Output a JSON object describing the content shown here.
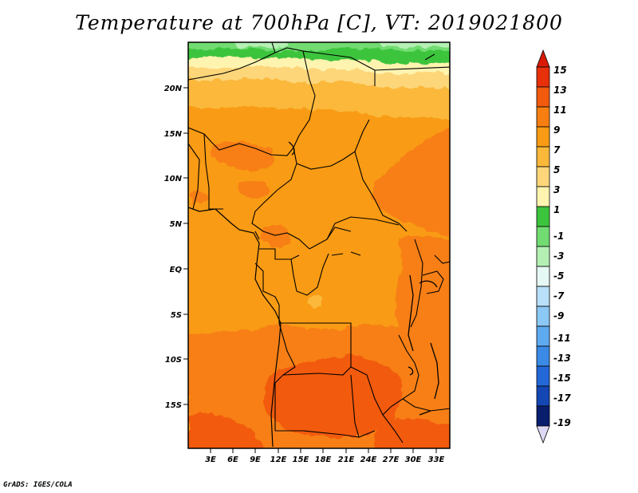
{
  "title": "Temperature at 700hPa [C], VT: 2019021800",
  "credit": "GrADS: IGES/COLA",
  "map": {
    "lat_labels": [
      "20N",
      "15N",
      "10N",
      "5N",
      "EQ",
      "5S",
      "10S",
      "15S"
    ],
    "lon_labels": [
      "3E",
      "6E",
      "9E",
      "12E",
      "15E",
      "18E",
      "21E",
      "24E",
      "27E",
      "30E",
      "33E"
    ]
  },
  "colorbar": {
    "labels": [
      "15",
      "13",
      "11",
      "9",
      "7",
      "5",
      "3",
      "1",
      "-1",
      "-3",
      "-5",
      "-7",
      "-9",
      "-11",
      "-13",
      "-15",
      "-17",
      "-19"
    ],
    "colors": {
      "top_arrow": "#d81a06",
      "c15": "#e8300a",
      "c13": "#f25a0e",
      "c11": "#f77f12",
      "c9": "#f99b14",
      "c7": "#fbb83a",
      "c5": "#fdd67a",
      "c3": "#fef4b0",
      "c1": "#3cc43c",
      "cm1": "#72dc72",
      "cm3": "#b4f0b4",
      "cm5": "#e6f8f4",
      "cm7": "#b8e0f8",
      "cm9": "#8cc8f4",
      "cm11": "#5eaaf0",
      "cm13": "#3a8ae6",
      "cm15": "#2468d8",
      "cm17": "#1446b4",
      "cm19": "#0a1e6e",
      "bottom_arrow": "#dcd8f4"
    }
  }
}
